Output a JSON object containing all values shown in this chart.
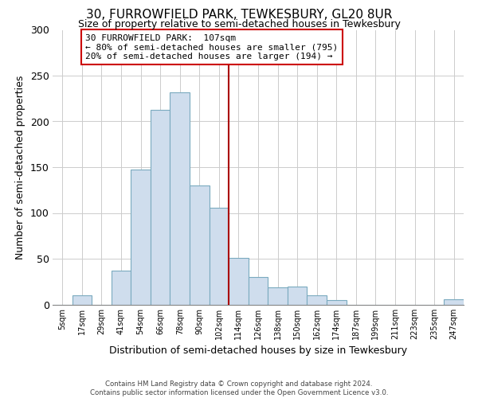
{
  "title": "30, FURROWFIELD PARK, TEWKESBURY, GL20 8UR",
  "subtitle": "Size of property relative to semi-detached houses in Tewkesbury",
  "xlabel": "Distribution of semi-detached houses by size in Tewkesbury",
  "ylabel": "Number of semi-detached properties",
  "bin_labels": [
    "5sqm",
    "17sqm",
    "29sqm",
    "41sqm",
    "54sqm",
    "66sqm",
    "78sqm",
    "90sqm",
    "102sqm",
    "114sqm",
    "126sqm",
    "138sqm",
    "150sqm",
    "162sqm",
    "174sqm",
    "187sqm",
    "199sqm",
    "211sqm",
    "223sqm",
    "235sqm",
    "247sqm"
  ],
  "bar_heights": [
    0,
    10,
    0,
    37,
    147,
    213,
    232,
    130,
    106,
    51,
    30,
    19,
    20,
    10,
    5,
    0,
    0,
    0,
    0,
    0,
    6
  ],
  "bar_color": "#cfdded",
  "bar_edge_color": "#7aaabf",
  "grid_color": "#cccccc",
  "vline_color": "#aa0000",
  "annotation_text_line1": "30 FURROWFIELD PARK:  107sqm",
  "annotation_text_line2": "← 80% of semi-detached houses are smaller (795)",
  "annotation_text_line3": "20% of semi-detached houses are larger (194) →",
  "annotation_box_color": "#cc0000",
  "footnote": "Contains HM Land Registry data © Crown copyright and database right 2024.\nContains public sector information licensed under the Open Government Licence v3.0.",
  "ylim": [
    0,
    300
  ],
  "background_color": "#ffffff",
  "plot_background": "#ffffff",
  "vline_bar_index": 8.5
}
